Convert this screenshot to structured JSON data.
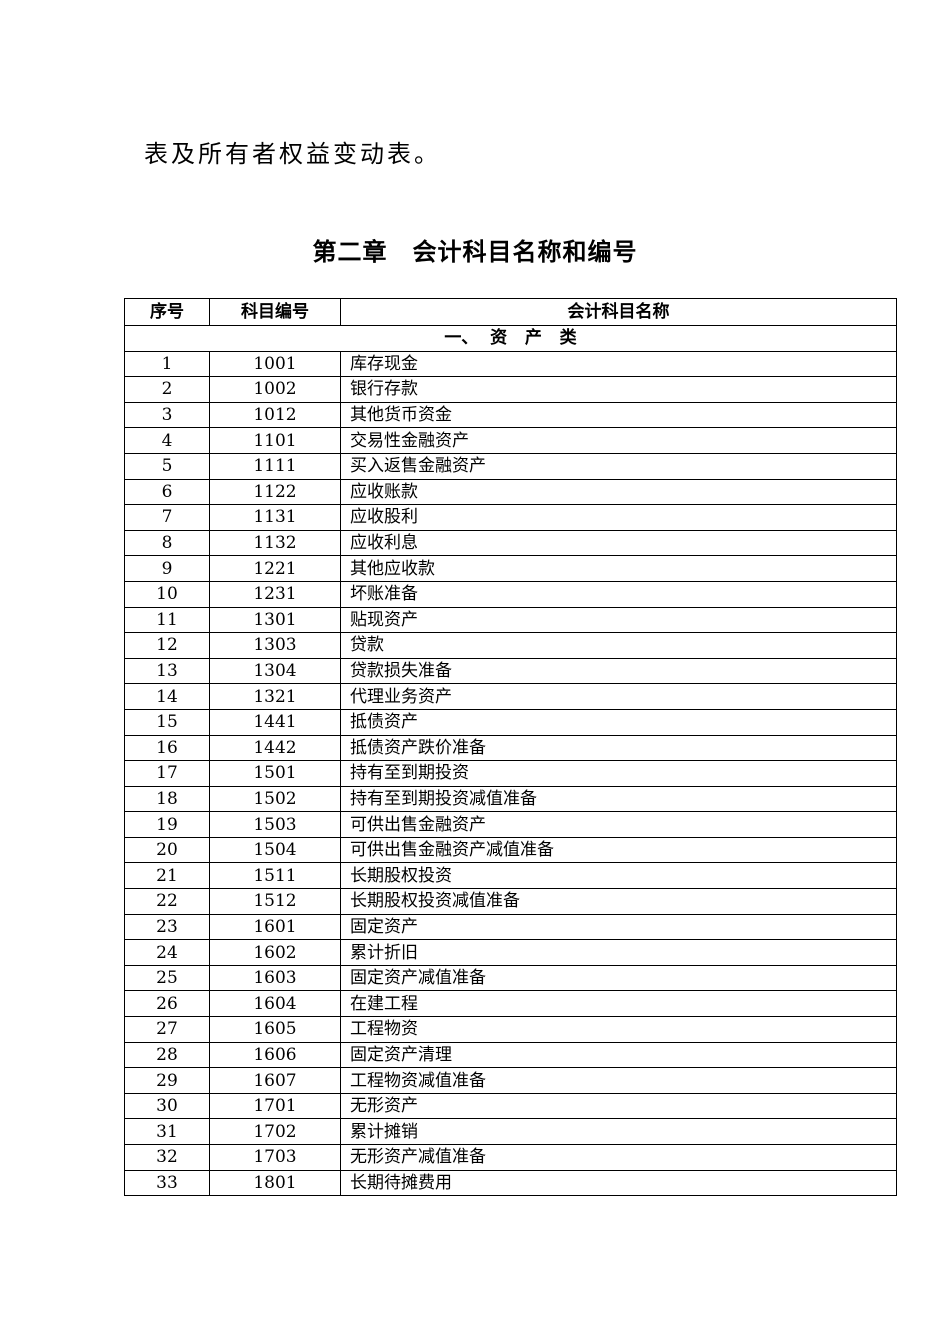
{
  "intro_text": "表及所有者权益变动表。",
  "chapter_title": "第二章　会计科目名称和编号",
  "table": {
    "headers": [
      "序号",
      "科目编号",
      "会计科目名称"
    ],
    "section": "一、  资   产   类",
    "rows": [
      [
        "1",
        "1001",
        "库存现金"
      ],
      [
        "2",
        "1002",
        "银行存款"
      ],
      [
        "3",
        "1012",
        "其他货币资金"
      ],
      [
        "4",
        "1101",
        "交易性金融资产"
      ],
      [
        "5",
        "1111",
        "买入返售金融资产"
      ],
      [
        "6",
        "1122",
        "应收账款"
      ],
      [
        "7",
        "1131",
        "应收股利"
      ],
      [
        "8",
        "1132",
        "应收利息"
      ],
      [
        "9",
        "1221",
        "其他应收款"
      ],
      [
        "10",
        "1231",
        "坏账准备"
      ],
      [
        "11",
        "1301",
        "贴现资产"
      ],
      [
        "12",
        "1303",
        "贷款"
      ],
      [
        "13",
        "1304",
        "贷款损失准备"
      ],
      [
        "14",
        "1321",
        "代理业务资产"
      ],
      [
        "15",
        "1441",
        "抵债资产"
      ],
      [
        "16",
        "1442",
        "抵债资产跌价准备"
      ],
      [
        "17",
        "1501",
        "持有至到期投资"
      ],
      [
        "18",
        "1502",
        "持有至到期投资减值准备"
      ],
      [
        "19",
        "1503",
        "可供出售金融资产"
      ],
      [
        "20",
        "1504",
        "可供出售金融资产减值准备"
      ],
      [
        "21",
        "1511",
        "长期股权投资"
      ],
      [
        "22",
        "1512",
        "长期股权投资减值准备"
      ],
      [
        "23",
        "1601",
        "固定资产"
      ],
      [
        "24",
        "1602",
        "累计折旧"
      ],
      [
        "25",
        "1603",
        "固定资产减值准备"
      ],
      [
        "26",
        "1604",
        "在建工程"
      ],
      [
        "27",
        "1605",
        "工程物资"
      ],
      [
        "28",
        "1606",
        "固定资产清理"
      ],
      [
        "29",
        "1607",
        "工程物资减值准备"
      ],
      [
        "30",
        "1701",
        "无形资产"
      ],
      [
        "31",
        "1702",
        "累计摊销"
      ],
      [
        "32",
        "1703",
        "无形资产减值准备"
      ],
      [
        "33",
        "1801",
        "长期待摊费用"
      ]
    ]
  }
}
